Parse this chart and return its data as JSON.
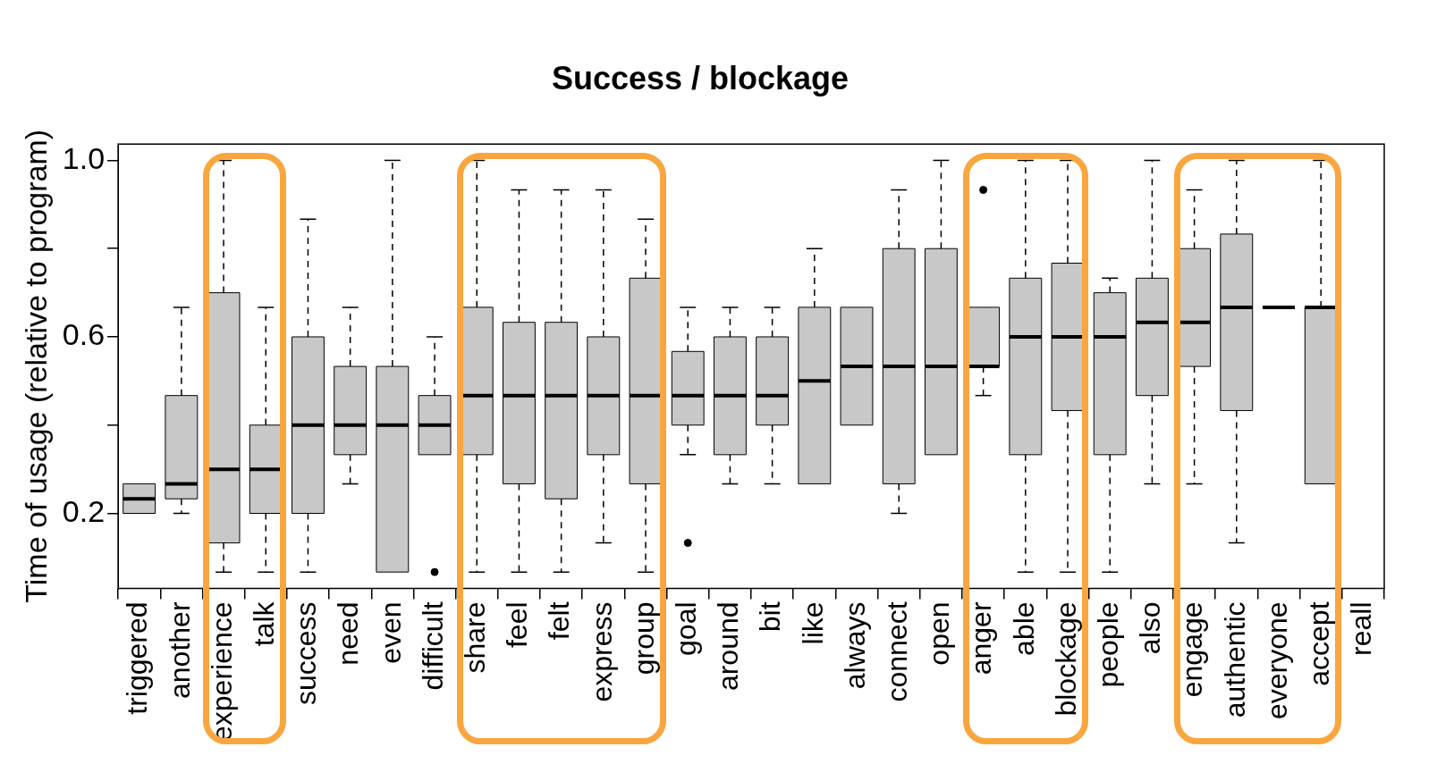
{
  "chart_data": {
    "type": "box",
    "title": "Success / blockage",
    "ylabel": "Time of usage (relative to program)",
    "colors": [
      "#c8c8c8",
      "#c8c8c8",
      "#c8c8c8",
      "#c8c8c8",
      "#c8c8c8",
      "#c8c8c8",
      "#c8c8c8",
      "#c8c8c8",
      "#c8c8c8",
      "#c8c8c8",
      "#c8c8c8",
      "#c8c8c8",
      "#c8c8c8",
      "#c8c8c8",
      "#c8c8c8",
      "#c8c8c8",
      "#c8c8c8",
      "#c8c8c8",
      "#c8c8c8",
      "#c8c8c8",
      "#c8c8c8",
      "#c8c8c8",
      "#c8c8c8",
      "#c8c8c8",
      "#c8c8c8",
      "#c8c8c8",
      "#c8c8c8",
      "#000000",
      "#c8c8c8",
      null
    ],
    "categories": [
      "triggered",
      "another",
      "experience",
      "talk",
      "success",
      "need",
      "even",
      "difficult",
      "share",
      "feel",
      "felt",
      "express",
      "group",
      "goal",
      "around",
      "bit",
      "like",
      "always",
      "connect",
      "open",
      "anger",
      "able",
      "blockage",
      "people",
      "also",
      "engage",
      "authentic",
      "everyone",
      "accept",
      "reall"
    ],
    "boxes": [
      {
        "low": 0.2,
        "q1": 0.2,
        "median": 0.233,
        "q3": 0.267,
        "high": 0.267
      },
      {
        "low": 0.2,
        "q1": 0.233,
        "median": 0.267,
        "q3": 0.467,
        "high": 0.667
      },
      {
        "low": 0.067,
        "q1": 0.133,
        "median": 0.3,
        "q3": 0.7,
        "high": 1.0
      },
      {
        "low": 0.067,
        "q1": 0.2,
        "median": 0.3,
        "q3": 0.4,
        "high": 0.667
      },
      {
        "low": 0.067,
        "q1": 0.2,
        "median": 0.4,
        "q3": 0.6,
        "high": 0.867
      },
      {
        "low": 0.267,
        "q1": 0.333,
        "median": 0.4,
        "q3": 0.533,
        "high": 0.667
      },
      {
        "low": 0.067,
        "q1": 0.067,
        "median": 0.4,
        "q3": 0.533,
        "high": 1.0
      },
      {
        "low": 0.333,
        "q1": 0.333,
        "median": 0.4,
        "q3": 0.467,
        "high": 0.6,
        "outliers": [
          0.067
        ]
      },
      {
        "low": 0.067,
        "q1": 0.333,
        "median": 0.467,
        "q3": 0.667,
        "high": 1.0
      },
      {
        "low": 0.067,
        "q1": 0.267,
        "median": 0.467,
        "q3": 0.633,
        "high": 0.933
      },
      {
        "low": 0.067,
        "q1": 0.233,
        "median": 0.467,
        "q3": 0.633,
        "high": 0.933
      },
      {
        "low": 0.133,
        "q1": 0.333,
        "median": 0.467,
        "q3": 0.6,
        "high": 0.933
      },
      {
        "low": 0.067,
        "q1": 0.267,
        "median": 0.467,
        "q3": 0.733,
        "high": 0.867
      },
      {
        "low": 0.333,
        "q1": 0.4,
        "median": 0.467,
        "q3": 0.567,
        "high": 0.667,
        "outliers": [
          0.133
        ]
      },
      {
        "low": 0.267,
        "q1": 0.333,
        "median": 0.467,
        "q3": 0.6,
        "high": 0.667
      },
      {
        "low": 0.267,
        "q1": 0.4,
        "median": 0.467,
        "q3": 0.6,
        "high": 0.667
      },
      {
        "low": 0.267,
        "q1": 0.267,
        "median": 0.5,
        "q3": 0.667,
        "high": 0.8
      },
      {
        "low": 0.4,
        "q1": 0.4,
        "median": 0.533,
        "q3": 0.667,
        "high": 0.667
      },
      {
        "low": 0.2,
        "q1": 0.267,
        "median": 0.533,
        "q3": 0.8,
        "high": 0.933
      },
      {
        "low": 0.333,
        "q1": 0.333,
        "median": 0.533,
        "q3": 0.8,
        "high": 1.0
      },
      {
        "low": 0.467,
        "q1": 0.533,
        "median": 0.533,
        "q3": 0.667,
        "high": 0.667,
        "outliers": [
          0.933
        ]
      },
      {
        "low": 0.067,
        "q1": 0.333,
        "median": 0.6,
        "q3": 0.733,
        "high": 1.0
      },
      {
        "low": 0.067,
        "q1": 0.433,
        "median": 0.6,
        "q3": 0.767,
        "high": 1.0
      },
      {
        "low": 0.067,
        "q1": 0.333,
        "median": 0.6,
        "q3": 0.7,
        "high": 0.733
      },
      {
        "low": 0.267,
        "q1": 0.467,
        "median": 0.633,
        "q3": 0.733,
        "high": 1.0
      },
      {
        "low": 0.267,
        "q1": 0.533,
        "median": 0.633,
        "q3": 0.8,
        "high": 0.933
      },
      {
        "low": 0.133,
        "q1": 0.433,
        "median": 0.667,
        "q3": 0.833,
        "high": 1.0
      },
      {
        "low": 0.667,
        "q1": 0.667,
        "median": 0.667,
        "q3": 0.667,
        "high": 0.667
      },
      {
        "low": 0.267,
        "q1": 0.267,
        "median": 0.667,
        "q3": 0.667,
        "high": 1.0
      },
      null
    ],
    "ylim": [
      0.03,
      1.037
    ],
    "yticks": [
      0.2,
      {
        "value": 0.4,
        "label": null
      },
      0.6,
      {
        "value": 0.8,
        "label": null
      },
      {
        "value": 1.0,
        "label": "1.0"
      }
    ]
  }
}
